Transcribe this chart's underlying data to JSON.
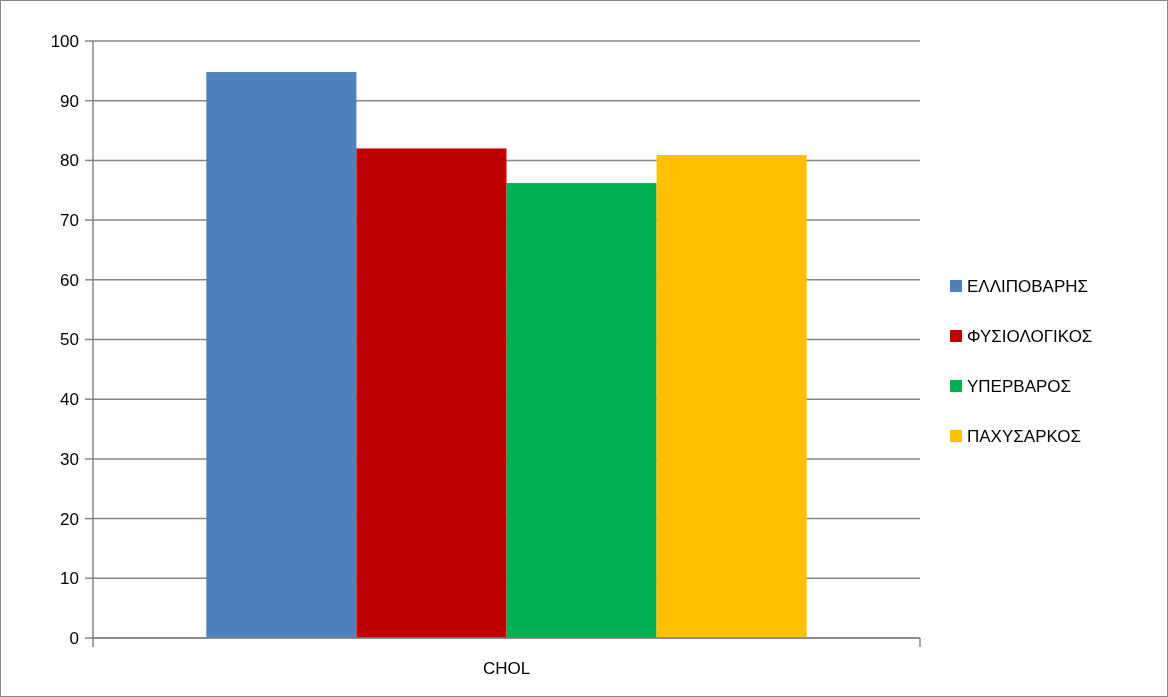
{
  "chart_data": {
    "type": "bar",
    "categories": [
      "CHOL"
    ],
    "series": [
      {
        "name": "ΕΛΛΙΠΟΒΑΡΗΣ",
        "color": "#4f81bd",
        "values": [
          94.8
        ]
      },
      {
        "name": "ΦΥΣΙΟΛΟΓΙΚΟΣ",
        "color": "#c00000",
        "values": [
          82
        ]
      },
      {
        "name": "ΥΠΕΡΒΑΡΟΣ",
        "color": "#00b050",
        "values": [
          76.2
        ]
      },
      {
        "name": "ΠΑΧΥΣΑΡΚΟΣ",
        "color": "#ffc000",
        "values": [
          80.9
        ]
      }
    ],
    "ylim": [
      0,
      100
    ],
    "yticks": [
      0,
      10,
      20,
      30,
      40,
      50,
      60,
      70,
      80,
      90,
      100
    ],
    "grid": "y",
    "legend": "right"
  }
}
